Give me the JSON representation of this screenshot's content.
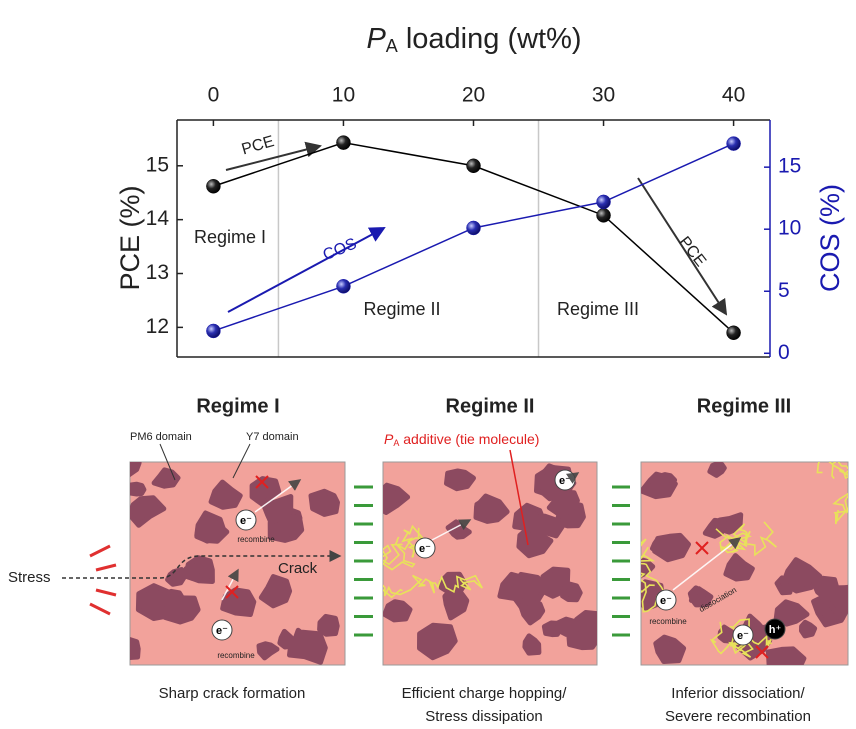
{
  "chart_data": {
    "type": "line",
    "xlabel": {
      "symbol": "P",
      "subscript": "A",
      "text": " loading (wt%)"
    },
    "ylabel": "PCE (%)",
    "y2label": "COS (%)",
    "x": [
      0,
      10,
      20,
      30,
      40
    ],
    "xlim": [
      -2.8,
      42.8
    ],
    "xticks": [
      0,
      10,
      20,
      30,
      40
    ],
    "ylim": [
      11.45,
      15.85
    ],
    "yticks": [
      12,
      13,
      14,
      15
    ],
    "y2lim": [
      -0.3,
      18.8
    ],
    "y2ticks": [
      0,
      5,
      10,
      15
    ],
    "regime_boundaries": [
      5,
      25
    ],
    "series": [
      {
        "name": "PCE",
        "color": "#000000",
        "values": [
          14.62,
          15.43,
          15.0,
          14.08,
          11.9
        ]
      },
      {
        "name": "COS",
        "color": "#1a1ab0",
        "axis": "y2",
        "values": [
          1.8,
          5.4,
          10.1,
          12.2,
          16.9
        ]
      }
    ],
    "annotations": [
      "PCE",
      "COS",
      "PCE",
      "Regime I",
      "Regime II",
      "Regime III"
    ]
  },
  "schematic": {
    "panels": [
      {
        "title": "Regime I",
        "caption": [
          "Sharp crack formation"
        ]
      },
      {
        "title": "Regime II",
        "caption": [
          "Efficient charge hopping/",
          "Stress dissipation"
        ]
      },
      {
        "title": "Regime III",
        "caption": [
          "Inferior dissociation/",
          "Severe recombination"
        ]
      }
    ],
    "labels": {
      "pm6": "PM6 domain",
      "y7": "Y7 domain",
      "additive": {
        "symbol": "P",
        "subscript": "A",
        "text": " additive (tie molecule)"
      },
      "stress": "Stress",
      "crack": "Crack",
      "electron": "e⁻",
      "hole": "h⁺",
      "recombine": "recombine",
      "dissociation": "dissociation"
    }
  }
}
